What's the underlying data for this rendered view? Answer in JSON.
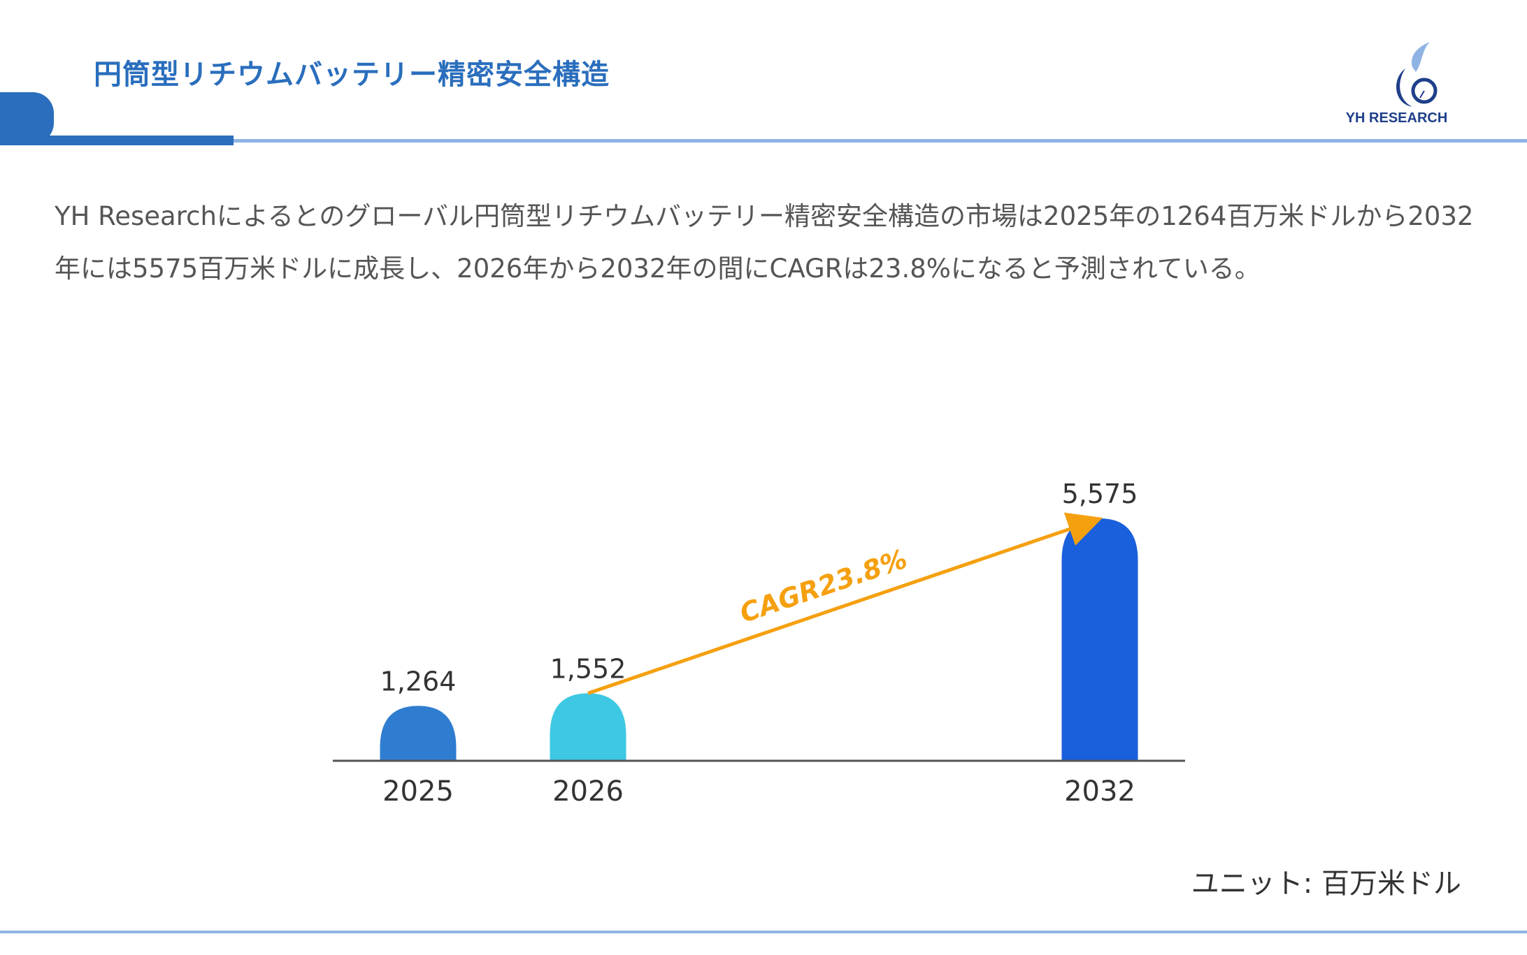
{
  "header": {
    "title": "円筒型リチウムバッテリー精密安全構造",
    "logo_text": "YH RESEARCH"
  },
  "description": "YH Researchによるとのグローバル円筒型リチウムバッテリー精密安全構造の市場は2025年の1264百万米ドルから2032年には5575百万米ドルに成長し、2026年から2032年の間にCAGRは23.8%になると予測されている。",
  "colors": {
    "title": "#2a6ebd",
    "arrow": "#f5a00f",
    "bar_2025": "#2f7dd1",
    "bar_2026": "#3ec8e4",
    "bar_2032": "#1a5fdc"
  },
  "chart_data": {
    "type": "bar",
    "categories": [
      "2025",
      "2026",
      "2032"
    ],
    "values": [
      1264,
      1552,
      5575
    ],
    "value_labels": [
      "1,264",
      "1,552",
      "5,575"
    ],
    "annotation": "CAGR23.8%",
    "unit_label": "ユニット: 百万米ドル",
    "grid": false,
    "ylim": [
      0,
      5575
    ]
  }
}
